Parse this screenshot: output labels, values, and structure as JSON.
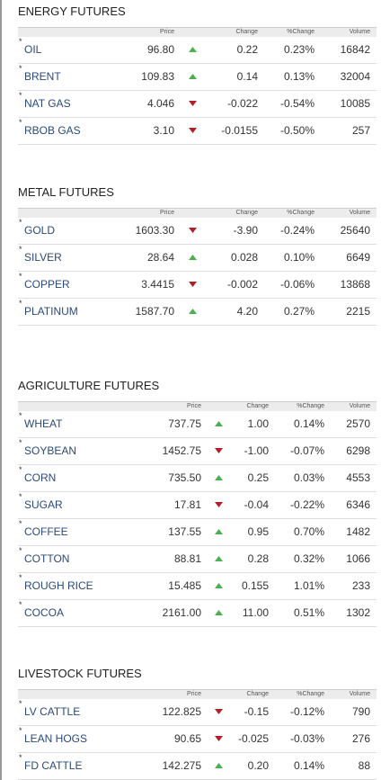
{
  "row_marker": "*",
  "sections": [
    {
      "title": "ENERGY FUTURES",
      "headers": [
        "Price",
        "Change",
        "%Change",
        "Volume"
      ],
      "rows": [
        [
          "OIL",
          "96.80",
          "0.22",
          "0.23%",
          "16842"
        ],
        [
          "BRENT",
          "109.83",
          "0.14",
          "0.13%",
          "32004"
        ],
        [
          "NAT GAS",
          "4.046",
          "-0.022",
          "-0.54%",
          "10085"
        ],
        [
          "RBOB GAS",
          "3.10",
          "-0.0155",
          "-0.50%",
          "257"
        ]
      ]
    },
    {
      "title": "METAL FUTURES",
      "headers": [
        "Price",
        "Change",
        "%Change",
        "Volume"
      ],
      "rows": [
        [
          "GOLD",
          "1603.30",
          "-3.90",
          "-0.24%",
          "25640"
        ],
        [
          "SILVER",
          "28.64",
          "0.028",
          "0.10%",
          "6649"
        ],
        [
          "COPPER",
          "3.4415",
          "-0.002",
          "-0.06%",
          "13868"
        ],
        [
          "PLATINUM",
          "1587.70",
          "4.20",
          "0.27%",
          "2215"
        ]
      ]
    },
    {
      "title": "AGRICULTURE FUTURES",
      "headers": [
        "Price",
        "Change",
        "%Change",
        "Volume"
      ],
      "rows": [
        [
          "WHEAT",
          "737.75",
          "1.00",
          "0.14%",
          "2570"
        ],
        [
          "SOYBEAN",
          "1452.75",
          "-1.00",
          "-0.07%",
          "6298"
        ],
        [
          "CORN",
          "735.50",
          "0.25",
          "0.03%",
          "4553"
        ],
        [
          "SUGAR",
          "17.81",
          "-0.04",
          "-0.22%",
          "6346"
        ],
        [
          "COFFEE",
          "137.55",
          "0.95",
          "0.70%",
          "1482"
        ],
        [
          "COTTON",
          "88.81",
          "0.28",
          "0.32%",
          "1066"
        ],
        [
          "ROUGH RICE",
          "15.485",
          "0.155",
          "1.01%",
          "233"
        ],
        [
          "COCOA",
          "2161.00",
          "11.00",
          "0.51%",
          "1302"
        ]
      ]
    },
    {
      "title": "LIVESTOCK FUTURES",
      "headers": [
        "Price",
        "Change",
        "%Change",
        "Volume"
      ],
      "rows": [
        [
          "LV CATTLE",
          "122.825",
          "-0.15",
          "-0.12%",
          "790"
        ],
        [
          "LEAN HOGS",
          "90.65",
          "-0.025",
          "-0.03%",
          "276"
        ],
        [
          "FD CATTLE",
          "142.275",
          "0.20",
          "0.14%",
          "88"
        ]
      ]
    }
  ]
}
